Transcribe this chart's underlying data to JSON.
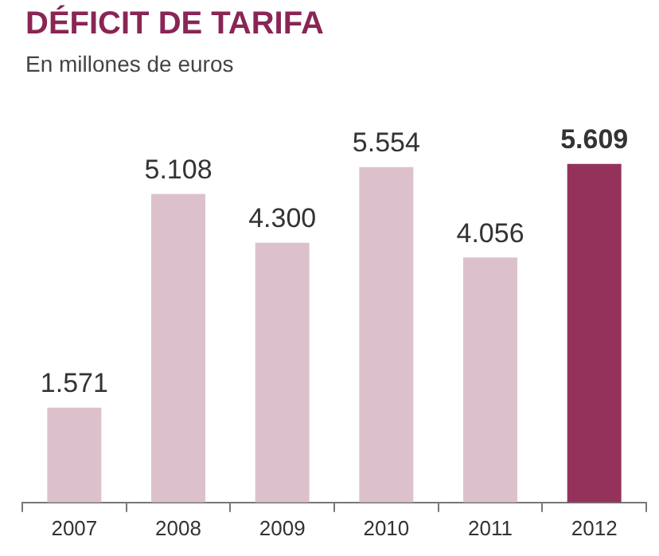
{
  "chart_data": {
    "type": "bar",
    "title": "DÉFICIT DE TARIFA",
    "subtitle": "En millones de euros",
    "categories": [
      "2007",
      "2008",
      "2009",
      "2010",
      "2011",
      "2012"
    ],
    "values": [
      1571,
      5108,
      4300,
      5554,
      4056,
      5609
    ],
    "colors": [
      "#dcc1cc",
      "#dcc1cc",
      "#dcc1cc",
      "#dcc1cc",
      "#dcc1cc",
      "#94325c"
    ],
    "value_labels": [
      "1.571",
      "5.108",
      "4.300",
      "5.554",
      "4.056",
      "5.609"
    ],
    "grid": false,
    "legend": false
  }
}
